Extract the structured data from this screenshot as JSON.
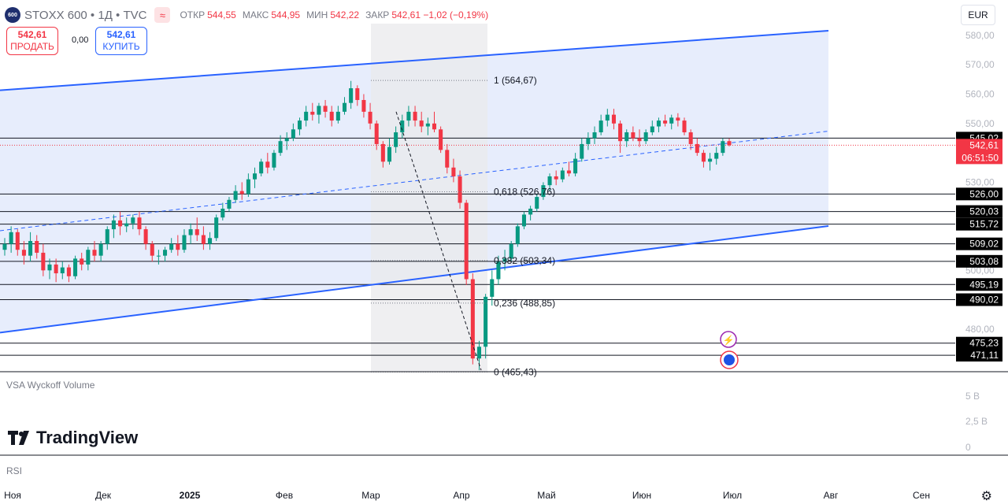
{
  "header": {
    "logo_text": "600",
    "symbol": "STOXX 600 • 1Д • TVC",
    "indicator_icon": "wave-icon",
    "ohlc": [
      {
        "label": "ОТКР",
        "value": "544,55"
      },
      {
        "label": "МАКС",
        "value": "544,95"
      },
      {
        "label": "МИН",
        "value": "542,22"
      },
      {
        "label": "ЗАКР",
        "value": "542,61 −1,02 (−0,19%)"
      }
    ]
  },
  "trade": {
    "sell_price": "542,61",
    "sell_label": "ПРОДАТЬ",
    "spread": "0,00",
    "buy_price": "542,61",
    "buy_label": "КУПИТЬ"
  },
  "currency": "EUR",
  "panes": {
    "volume_title": "VSA Wyckoff Volume",
    "rsi_title": "RSI",
    "brand": "TradingView"
  },
  "colors": {
    "up": "#089981",
    "down": "#f23645",
    "channel": "#2962ff",
    "price_line": "#f23645"
  },
  "chart_data": {
    "type": "candlestick",
    "ylim": [
      465.5,
      584
    ],
    "y_ticks": [
      "580,00",
      "570,00",
      "560,00",
      "550,00",
      "530,00",
      "500,00",
      "480,00"
    ],
    "x_ticks": [
      "Ноя",
      "Дек",
      "2025",
      "Фев",
      "Мар",
      "Апр",
      "Май",
      "Июн",
      "Июл",
      "Авг",
      "Сен"
    ],
    "last_price": {
      "value": 542.61,
      "label": "542,61",
      "countdown": "06:51:50"
    },
    "levels": [
      {
        "value": 545.02,
        "label": "545,02"
      },
      {
        "value": 526.0,
        "label": "526,00"
      },
      {
        "value": 520.03,
        "label": "520,03"
      },
      {
        "value": 515.72,
        "label": "515,72"
      },
      {
        "value": 509.02,
        "label": "509,02"
      },
      {
        "value": 503.08,
        "label": "503,08"
      },
      {
        "value": 495.19,
        "label": "495,19"
      },
      {
        "value": 490.02,
        "label": "490,02"
      },
      {
        "value": 475.23,
        "label": "475,23"
      },
      {
        "value": 471.11,
        "label": "471,11"
      }
    ],
    "fib": [
      {
        "value": 564.67,
        "label": "1 (564,67)"
      },
      {
        "value": 526.76,
        "label": "0,618 (526,76)"
      },
      {
        "value": 503.34,
        "label": "0,382 (503,34)"
      },
      {
        "value": 488.85,
        "label": "0,236 (488,85)"
      },
      {
        "value": 465.43,
        "label": "0 (465,43)"
      }
    ],
    "volume_ticks": [
      "5 B",
      "2,5 B",
      "0"
    ],
    "series": [
      {
        "name": "STOXX 600",
        "ohlc": [
          [
            507.0,
            511.0,
            505.0,
            509.0
          ],
          [
            509.0,
            515.0,
            506.0,
            513.0
          ],
          [
            513.0,
            514.0,
            505.0,
            507.0
          ],
          [
            507.0,
            510.0,
            502.0,
            505.0
          ],
          [
            505.0,
            513.0,
            503.0,
            510.0
          ],
          [
            510.0,
            512.0,
            504.0,
            506.0
          ],
          [
            506.0,
            509.0,
            498.0,
            500.0
          ],
          [
            500.0,
            504.0,
            497.0,
            502.0
          ],
          [
            502.0,
            504.0,
            496.0,
            499.0
          ],
          [
            499.0,
            503.0,
            497.0,
            501.0
          ],
          [
            501.0,
            502.0,
            496.0,
            498.0
          ],
          [
            498.0,
            505.0,
            497.0,
            504.0
          ],
          [
            504.0,
            506.0,
            500.0,
            502.0
          ],
          [
            502.0,
            508.0,
            500.0,
            507.0
          ],
          [
            507.0,
            510.0,
            503.0,
            505.0
          ],
          [
            505.0,
            510.0,
            503.0,
            509.0
          ],
          [
            509.0,
            515.0,
            507.0,
            514.0
          ],
          [
            514.0,
            519.0,
            511.0,
            517.0
          ],
          [
            517.0,
            520.0,
            512.0,
            515.0
          ],
          [
            515.0,
            518.0,
            513.0,
            516.0
          ],
          [
            516.0,
            519.0,
            514.0,
            518.0
          ],
          [
            518.0,
            520.0,
            512.0,
            514.0
          ],
          [
            514.0,
            515.0,
            507.0,
            509.0
          ],
          [
            509.0,
            510.0,
            503.0,
            505.0
          ],
          [
            505.0,
            507.0,
            502.0,
            505.0
          ],
          [
            505.0,
            508.0,
            503.0,
            507.0
          ],
          [
            507.0,
            511.0,
            506.0,
            509.0
          ],
          [
            509.0,
            512.0,
            505.0,
            507.0
          ],
          [
            507.0,
            514.0,
            506.0,
            512.0
          ],
          [
            512.0,
            516.0,
            509.0,
            514.0
          ],
          [
            514.0,
            518.0,
            510.0,
            512.0
          ],
          [
            512.0,
            515.0,
            507.0,
            509.0
          ],
          [
            509.0,
            513.0,
            507.0,
            511.0
          ],
          [
            511.0,
            519.0,
            510.0,
            518.0
          ],
          [
            518.0,
            523.0,
            517.0,
            521.0
          ],
          [
            521.0,
            525.0,
            520.0,
            524.0
          ],
          [
            524.0,
            529.0,
            523.0,
            527.0
          ],
          [
            527.0,
            530.0,
            524.0,
            526.0
          ],
          [
            526.0,
            533.0,
            525.0,
            531.0
          ],
          [
            531.0,
            535.0,
            528.0,
            533.0
          ],
          [
            533.0,
            538.0,
            532.0,
            537.0
          ],
          [
            537.0,
            540.0,
            533.0,
            535.0
          ],
          [
            535.0,
            541.0,
            534.0,
            540.0
          ],
          [
            540.0,
            546.0,
            539.0,
            544.0
          ],
          [
            544.0,
            547.0,
            541.0,
            545.0
          ],
          [
            545.0,
            550.0,
            544.0,
            548.0
          ],
          [
            548.0,
            552.0,
            546.0,
            551.0
          ],
          [
            551.0,
            556.0,
            549.0,
            554.0
          ],
          [
            554.0,
            557.0,
            551.0,
            553.0
          ],
          [
            553.0,
            557.0,
            550.0,
            556.0
          ],
          [
            556.0,
            558.0,
            552.0,
            554.0
          ],
          [
            554.0,
            556.0,
            549.0,
            551.0
          ],
          [
            551.0,
            556.0,
            550.0,
            554.0
          ],
          [
            554.0,
            559.0,
            553.0,
            557.0
          ],
          [
            557.0,
            564.5,
            555.0,
            562.0
          ],
          [
            562.0,
            563.0,
            556.0,
            558.0
          ],
          [
            558.0,
            560.0,
            552.0,
            554.0
          ],
          [
            554.0,
            557.0,
            548.0,
            550.0
          ],
          [
            550.0,
            551.0,
            541.0,
            543.0
          ],
          [
            543.0,
            544.0,
            535.0,
            537.0
          ],
          [
            537.0,
            545.0,
            536.0,
            542.0
          ],
          [
            542.0,
            549.0,
            540.0,
            547.0
          ],
          [
            547.0,
            553.0,
            545.0,
            551.0
          ],
          [
            551.0,
            556.0,
            549.0,
            554.0
          ],
          [
            554.0,
            556.0,
            549.0,
            551.0
          ],
          [
            551.0,
            554.0,
            547.0,
            549.0
          ],
          [
            549.0,
            552.0,
            546.0,
            550.0
          ],
          [
            550.0,
            554.0,
            547.0,
            548.0
          ],
          [
            548.0,
            549.0,
            540.0,
            541.0
          ],
          [
            541.0,
            543.0,
            533.0,
            535.0
          ],
          [
            535.0,
            538.0,
            530.0,
            532.0
          ],
          [
            532.0,
            534.0,
            521.0,
            523.0
          ],
          [
            523.0,
            524.0,
            495.0,
            497.0
          ],
          [
            497.0,
            499.0,
            468.0,
            470.0
          ],
          [
            470.0,
            476.0,
            466.0,
            474.0
          ],
          [
            474.0,
            492.0,
            470.0,
            491.0
          ],
          [
            491.0,
            500.0,
            488.0,
            497.0
          ],
          [
            497.0,
            505.0,
            495.0,
            503.0
          ],
          [
            503.0,
            507.0,
            500.0,
            504.0
          ],
          [
            504.0,
            510.0,
            503.0,
            509.0
          ],
          [
            509.0,
            516.0,
            508.0,
            515.0
          ],
          [
            515.0,
            520.0,
            514.0,
            519.0
          ],
          [
            519.0,
            522.0,
            517.0,
            521.0
          ],
          [
            521.0,
            526.0,
            520.0,
            525.0
          ],
          [
            525.0,
            530.0,
            524.0,
            529.0
          ],
          [
            529.0,
            533.0,
            527.0,
            532.0
          ],
          [
            532.0,
            534.0,
            529.0,
            531.0
          ],
          [
            531.0,
            535.0,
            530.0,
            534.0
          ],
          [
            534.0,
            537.0,
            532.0,
            533.0
          ],
          [
            533.0,
            540.0,
            532.0,
            538.0
          ],
          [
            538.0,
            545.0,
            537.0,
            543.0
          ],
          [
            543.0,
            547.0,
            541.0,
            545.0
          ],
          [
            545.0,
            549.0,
            543.0,
            547.0
          ],
          [
            547.0,
            553.0,
            546.0,
            551.0
          ],
          [
            551.0,
            555.0,
            549.0,
            553.0
          ],
          [
            553.0,
            555.0,
            548.0,
            550.0
          ],
          [
            550.0,
            551.0,
            540.0,
            544.0
          ],
          [
            544.0,
            548.0,
            542.0,
            547.0
          ],
          [
            547.0,
            549.0,
            544.0,
            545.0
          ],
          [
            545.0,
            548.0,
            542.0,
            544.0
          ],
          [
            544.0,
            548.0,
            543.0,
            547.0
          ],
          [
            547.0,
            551.0,
            546.0,
            549.0
          ],
          [
            549.0,
            552.0,
            547.0,
            551.0
          ],
          [
            551.0,
            553.0,
            549.0,
            550.0
          ],
          [
            550.0,
            553.0,
            548.0,
            552.0
          ],
          [
            552.0,
            553.5,
            549.0,
            551.0
          ],
          [
            551.0,
            552.0,
            546.0,
            547.0
          ],
          [
            547.0,
            548.0,
            541.0,
            543.0
          ],
          [
            543.0,
            545.0,
            539.0,
            540.0
          ],
          [
            540.0,
            541.0,
            535.0,
            537.0
          ],
          [
            537.0,
            540.0,
            534.0,
            538.0
          ],
          [
            538.0,
            542.0,
            536.0,
            540.0
          ],
          [
            540.0,
            545.0,
            539.0,
            544.0
          ],
          [
            544.0,
            544.9,
            542.2,
            542.6
          ]
        ]
      }
    ]
  }
}
